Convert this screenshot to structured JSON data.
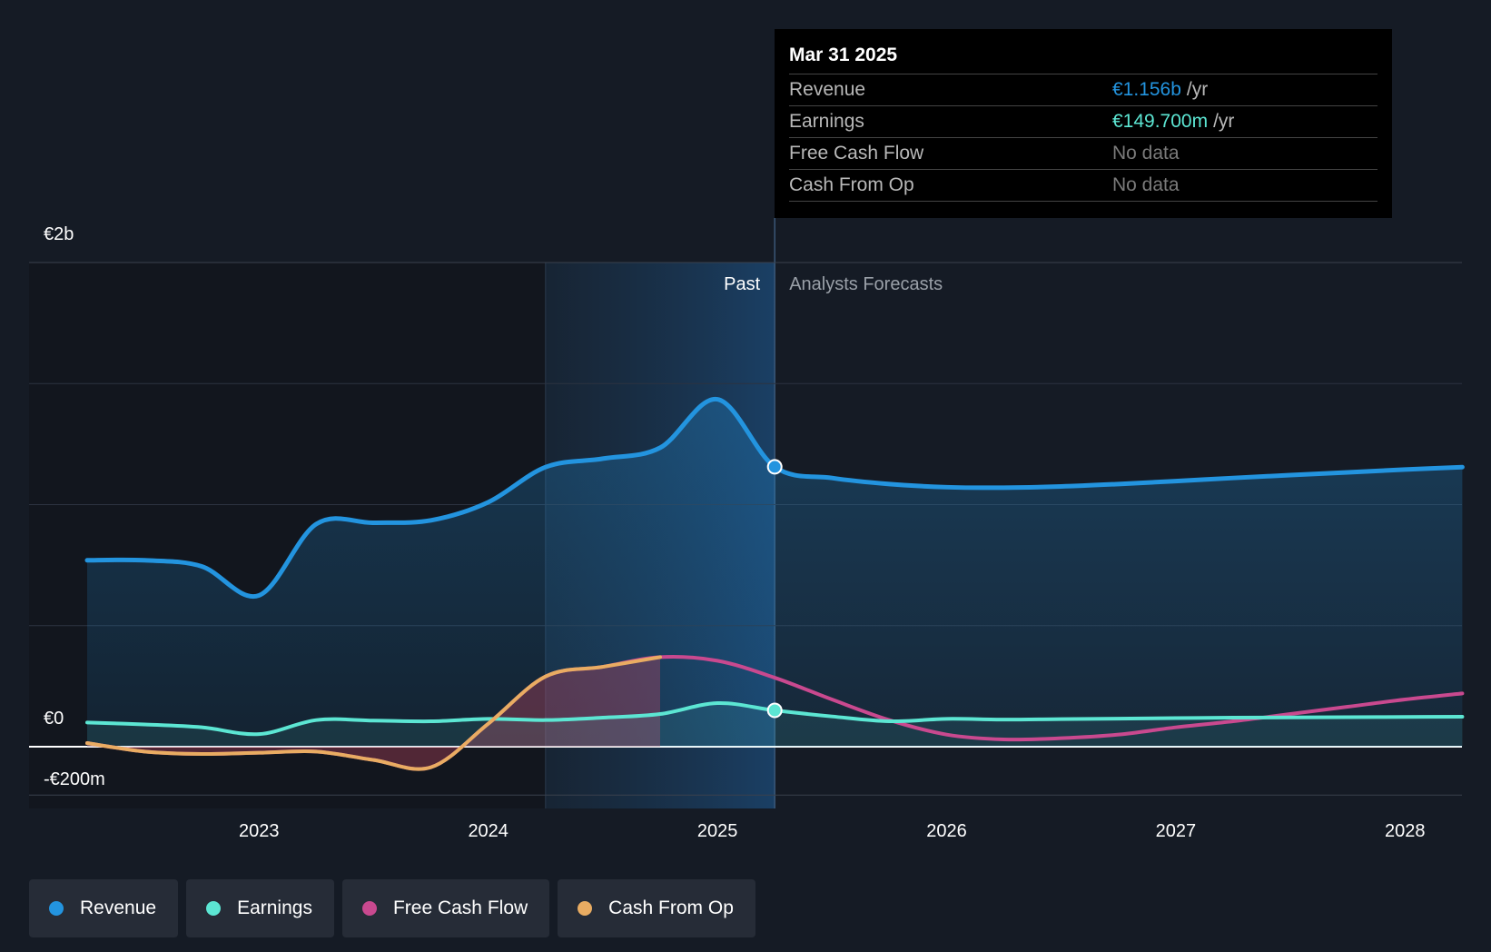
{
  "colors": {
    "revenue": "#2394df",
    "earnings": "#5ce6d3",
    "fcf": "#c9498f",
    "cfo": "#e9ac62",
    "grid": "#2c3340",
    "zero": "#ffffff",
    "forecast_label": "#9aa0a8"
  },
  "tooltip": {
    "date": "Mar 31 2025",
    "rows": [
      {
        "name": "Revenue",
        "value": "€1.156b",
        "unit": "/yr",
        "color": "#2394df"
      },
      {
        "name": "Earnings",
        "value": "€149.700m",
        "unit": "/yr",
        "color": "#5ce6d3"
      },
      {
        "name": "Free Cash Flow",
        "value": "No data",
        "unit": ""
      },
      {
        "name": "Cash From Op",
        "value": "No data",
        "unit": ""
      }
    ]
  },
  "legend": [
    {
      "label": "Revenue",
      "icon": "revenue-dot-icon",
      "color": "#2394df"
    },
    {
      "label": "Earnings",
      "icon": "earnings-dot-icon",
      "color": "#5ce6d3"
    },
    {
      "label": "Free Cash Flow",
      "icon": "fcf-dot-icon",
      "color": "#c9498f"
    },
    {
      "label": "Cash From Op",
      "icon": "cfo-dot-icon",
      "color": "#e9ac62"
    }
  ],
  "chart_data": {
    "type": "line",
    "title": "",
    "xlabel": "",
    "ylabel": "",
    "ylim": [
      -200,
      2000
    ],
    "xlim": [
      2022.0,
      2028.25
    ],
    "y_tick_labels": [
      {
        "value": 2000,
        "label": "€2b"
      },
      {
        "value": 0,
        "label": "€0"
      },
      {
        "value": -200,
        "label": "-€200m"
      }
    ],
    "x_ticks": [
      {
        "value": 2023,
        "label": "2023"
      },
      {
        "value": 2024,
        "label": "2024"
      },
      {
        "value": 2025,
        "label": "2025"
      },
      {
        "value": 2026,
        "label": "2026"
      },
      {
        "value": 2027,
        "label": "2027"
      },
      {
        "value": 2028,
        "label": "2028"
      }
    ],
    "region_labels": {
      "past": "Past",
      "forecast": "Analysts Forecasts"
    },
    "past_end": 2025.25,
    "highlight_start": 2024.25,
    "series": [
      {
        "name": "Revenue",
        "key": "revenue",
        "points": [
          [
            2022.25,
            770
          ],
          [
            2022.5,
            770
          ],
          [
            2022.75,
            745
          ],
          [
            2023.0,
            625
          ],
          [
            2023.25,
            920
          ],
          [
            2023.5,
            925
          ],
          [
            2023.75,
            935
          ],
          [
            2024.0,
            1010
          ],
          [
            2024.25,
            1155
          ],
          [
            2024.5,
            1190
          ],
          [
            2024.75,
            1235
          ],
          [
            2025.0,
            1435
          ],
          [
            2025.25,
            1156
          ],
          [
            2025.5,
            1110
          ],
          [
            2025.75,
            1085
          ],
          [
            2026.0,
            1072
          ],
          [
            2026.25,
            1070
          ],
          [
            2026.5,
            1075
          ],
          [
            2026.75,
            1085
          ],
          [
            2027.0,
            1097
          ],
          [
            2027.25,
            1110
          ],
          [
            2027.5,
            1122
          ],
          [
            2027.75,
            1133
          ],
          [
            2028.0,
            1145
          ],
          [
            2028.25,
            1155
          ]
        ]
      },
      {
        "name": "Earnings",
        "key": "earnings",
        "points": [
          [
            2022.25,
            100
          ],
          [
            2022.5,
            92
          ],
          [
            2022.75,
            80
          ],
          [
            2023.0,
            52
          ],
          [
            2023.25,
            110
          ],
          [
            2023.5,
            108
          ],
          [
            2023.75,
            105
          ],
          [
            2024.0,
            115
          ],
          [
            2024.25,
            110
          ],
          [
            2024.5,
            120
          ],
          [
            2024.75,
            135
          ],
          [
            2025.0,
            180
          ],
          [
            2025.25,
            150
          ],
          [
            2025.5,
            125
          ],
          [
            2025.75,
            105
          ],
          [
            2026.0,
            115
          ],
          [
            2026.25,
            112
          ],
          [
            2026.5,
            114
          ],
          [
            2026.75,
            116
          ],
          [
            2027.0,
            118
          ],
          [
            2027.25,
            120
          ],
          [
            2027.5,
            121
          ],
          [
            2027.75,
            122
          ],
          [
            2028.0,
            123
          ],
          [
            2028.25,
            124
          ]
        ]
      },
      {
        "name": "Free Cash Flow",
        "key": "fcf",
        "points": [
          [
            2022.25,
            15
          ],
          [
            2022.5,
            -20
          ],
          [
            2022.75,
            -30
          ],
          [
            2023.0,
            -25
          ],
          [
            2023.25,
            -20
          ],
          [
            2023.5,
            -55
          ],
          [
            2023.75,
            -85
          ],
          [
            2024.0,
            95
          ],
          [
            2024.25,
            290
          ],
          [
            2024.5,
            330
          ],
          [
            2024.75,
            370
          ],
          [
            2025.0,
            355
          ],
          [
            2025.25,
            285
          ],
          [
            2025.5,
            195
          ],
          [
            2025.75,
            110
          ],
          [
            2026.0,
            50
          ],
          [
            2026.25,
            30
          ],
          [
            2026.5,
            35
          ],
          [
            2026.75,
            50
          ],
          [
            2027.0,
            80
          ],
          [
            2027.25,
            105
          ],
          [
            2027.5,
            135
          ],
          [
            2027.75,
            165
          ],
          [
            2028.0,
            195
          ],
          [
            2028.25,
            220
          ]
        ]
      },
      {
        "name": "Cash From Op",
        "key": "cfo",
        "points": [
          [
            2022.25,
            15
          ],
          [
            2022.5,
            -20
          ],
          [
            2022.75,
            -30
          ],
          [
            2023.0,
            -25
          ],
          [
            2023.25,
            -20
          ],
          [
            2023.5,
            -55
          ],
          [
            2023.75,
            -85
          ],
          [
            2024.0,
            95
          ],
          [
            2024.25,
            290
          ],
          [
            2024.5,
            330
          ],
          [
            2024.75,
            370
          ]
        ]
      }
    ],
    "markers": [
      {
        "series": "revenue",
        "x": 2025.25,
        "y": 1156
      },
      {
        "series": "earnings",
        "x": 2025.25,
        "y": 150
      }
    ]
  }
}
